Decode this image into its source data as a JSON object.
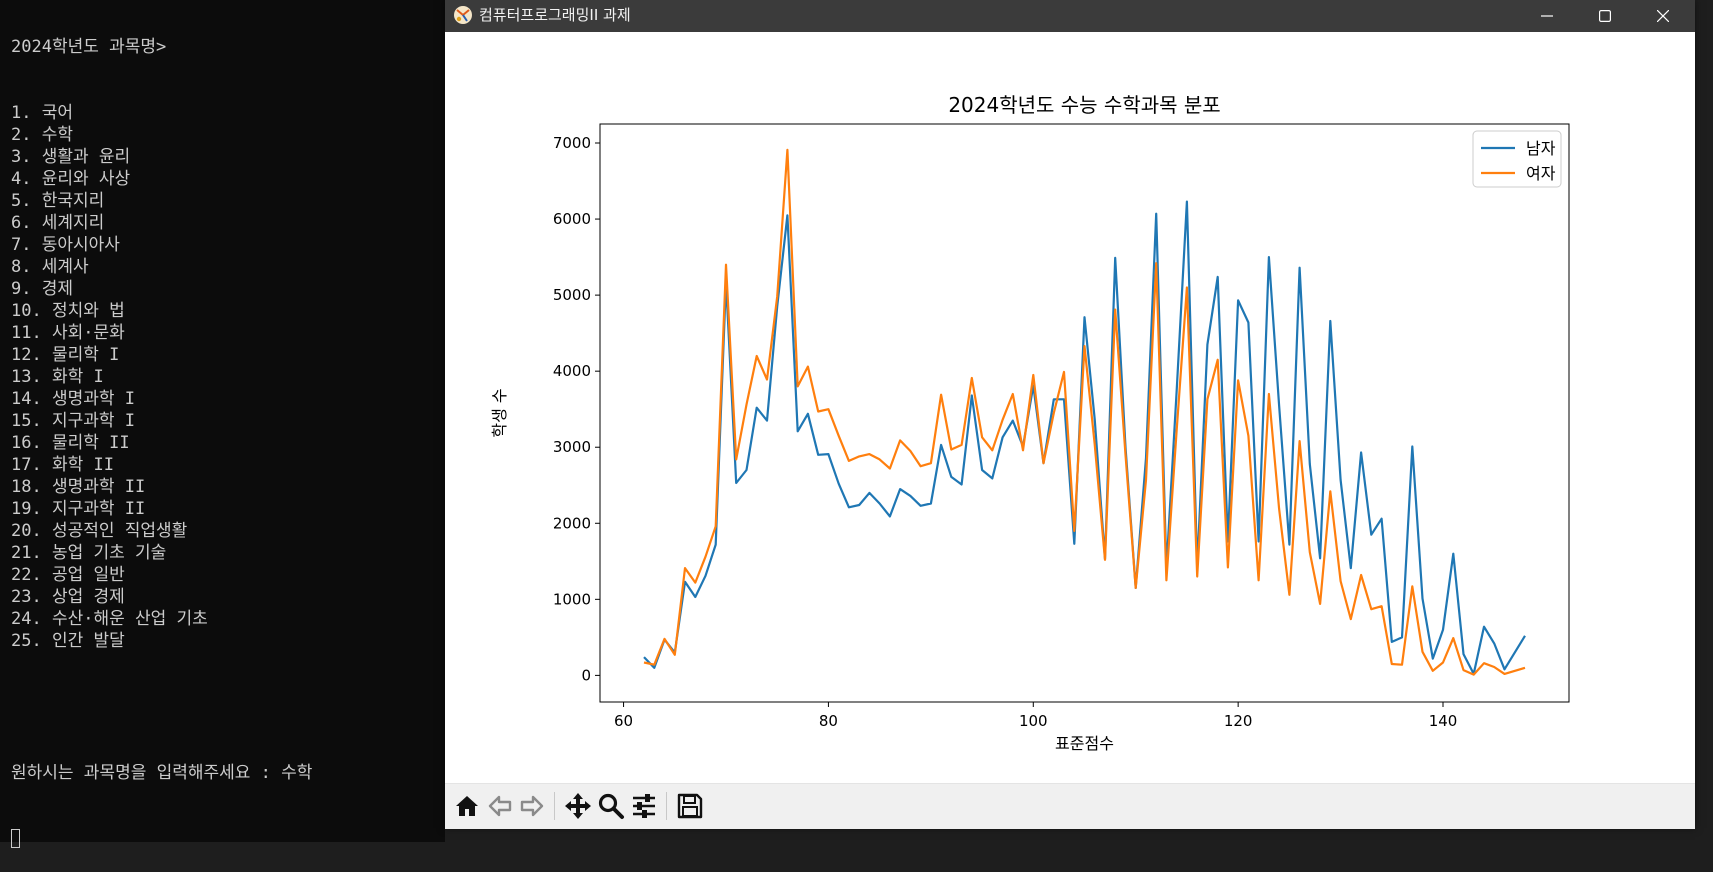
{
  "console": {
    "header": "2024학년도 과목명>",
    "items": [
      "1. 국어",
      "2. 수학",
      "3. 생활과 윤리",
      "4. 윤리와 사상",
      "5. 한국지리",
      "6. 세계지리",
      "7. 동아시아사",
      "8. 세계사",
      "9. 경제",
      "10. 정치와 법",
      "11. 사회·문화",
      "12. 물리학 I",
      "13. 화학 I",
      "14. 생명과학 I",
      "15. 지구과학 I",
      "16. 물리학 II",
      "17. 화학 II",
      "18. 생명과학 II",
      "19. 지구과학 II",
      "20. 성공적인 직업생활",
      "21. 농업 기초 기술",
      "22. 공업 일반",
      "23. 상업 경제",
      "24. 수산·해운 산업 기초",
      "25. 인간 발달"
    ],
    "prompt": "원하시는 과목명을 입력해주세요 : 수학"
  },
  "window": {
    "title": "컴퓨터프로그래밍II 과제",
    "titlebar_color": "#3b3b3b",
    "controls": [
      "minimize-icon",
      "maximize-icon",
      "close-icon"
    ]
  },
  "toolbar": {
    "buttons": [
      "home-icon",
      "back-arrow-icon",
      "forward-arrow-icon",
      "pan-icon",
      "zoom-icon",
      "configure-subplots-icon",
      "save-icon"
    ]
  },
  "chart_data": {
    "type": "line",
    "title": "2024학년도 수능 수학과목 분포",
    "xlabel": "표준점수",
    "ylabel": "학생 수",
    "xlim": [
      57.7,
      152.3
    ],
    "ylim": [
      -350,
      7250
    ],
    "xticks": [
      60,
      80,
      100,
      120,
      140
    ],
    "yticks": [
      0,
      1000,
      2000,
      3000,
      4000,
      5000,
      6000,
      7000
    ],
    "legend_position": "top-right",
    "grid": false,
    "series": [
      {
        "name": "남자",
        "color": "#1f77b4",
        "points": [
          [
            62,
            240
          ],
          [
            63,
            100
          ],
          [
            64,
            470
          ],
          [
            65,
            300
          ],
          [
            66,
            1230
          ],
          [
            67,
            1030
          ],
          [
            68,
            1310
          ],
          [
            69,
            1720
          ],
          [
            70,
            5180
          ],
          [
            71,
            2530
          ],
          [
            72,
            2700
          ],
          [
            73,
            3520
          ],
          [
            74,
            3350
          ],
          [
            75,
            4850
          ],
          [
            76,
            6050
          ],
          [
            77,
            3210
          ],
          [
            78,
            3440
          ],
          [
            79,
            2900
          ],
          [
            80,
            2910
          ],
          [
            81,
            2520
          ],
          [
            82,
            2210
          ],
          [
            83,
            2240
          ],
          [
            84,
            2400
          ],
          [
            85,
            2260
          ],
          [
            86,
            2090
          ],
          [
            87,
            2450
          ],
          [
            88,
            2360
          ],
          [
            89,
            2230
          ],
          [
            90,
            2260
          ],
          [
            91,
            3030
          ],
          [
            92,
            2610
          ],
          [
            93,
            2510
          ],
          [
            94,
            3680
          ],
          [
            95,
            2700
          ],
          [
            96,
            2590
          ],
          [
            97,
            3130
          ],
          [
            98,
            3350
          ],
          [
            99,
            3010
          ],
          [
            100,
            3810
          ],
          [
            101,
            2790
          ],
          [
            102,
            3630
          ],
          [
            103,
            3630
          ],
          [
            104,
            1730
          ],
          [
            105,
            4710
          ],
          [
            106,
            3370
          ],
          [
            107,
            1530
          ],
          [
            108,
            5490
          ],
          [
            109,
            3000
          ],
          [
            110,
            1150
          ],
          [
            111,
            2860
          ],
          [
            112,
            6070
          ],
          [
            113,
            1400
          ],
          [
            114,
            3750
          ],
          [
            115,
            6230
          ],
          [
            116,
            1410
          ],
          [
            117,
            4350
          ],
          [
            118,
            5240
          ],
          [
            119,
            1760
          ],
          [
            120,
            4930
          ],
          [
            121,
            4640
          ],
          [
            122,
            1760
          ],
          [
            123,
            5500
          ],
          [
            124,
            3550
          ],
          [
            125,
            1720
          ],
          [
            126,
            5360
          ],
          [
            127,
            2780
          ],
          [
            128,
            1540
          ],
          [
            129,
            4660
          ],
          [
            130,
            2570
          ],
          [
            131,
            1410
          ],
          [
            132,
            2930
          ],
          [
            133,
            1850
          ],
          [
            134,
            2060
          ],
          [
            135,
            440
          ],
          [
            136,
            500
          ],
          [
            137,
            3010
          ],
          [
            138,
            1010
          ],
          [
            139,
            220
          ],
          [
            140,
            600
          ],
          [
            141,
            1600
          ],
          [
            142,
            280
          ],
          [
            143,
            20
          ],
          [
            144,
            640
          ],
          [
            145,
            420
          ],
          [
            146,
            80
          ],
          [
            148,
            520
          ]
        ]
      },
      {
        "name": "여자",
        "color": "#ff7f0e",
        "points": [
          [
            62,
            170
          ],
          [
            63,
            140
          ],
          [
            64,
            480
          ],
          [
            65,
            270
          ],
          [
            66,
            1410
          ],
          [
            67,
            1220
          ],
          [
            68,
            1560
          ],
          [
            69,
            1960
          ],
          [
            70,
            5400
          ],
          [
            71,
            2840
          ],
          [
            72,
            3560
          ],
          [
            73,
            4200
          ],
          [
            74,
            3890
          ],
          [
            75,
            4980
          ],
          [
            76,
            6910
          ],
          [
            77,
            3800
          ],
          [
            78,
            4060
          ],
          [
            79,
            3470
          ],
          [
            80,
            3500
          ],
          [
            81,
            3150
          ],
          [
            82,
            2820
          ],
          [
            83,
            2880
          ],
          [
            84,
            2910
          ],
          [
            85,
            2840
          ],
          [
            86,
            2720
          ],
          [
            87,
            3090
          ],
          [
            88,
            2950
          ],
          [
            89,
            2750
          ],
          [
            90,
            2790
          ],
          [
            91,
            3690
          ],
          [
            92,
            2970
          ],
          [
            93,
            3030
          ],
          [
            94,
            3910
          ],
          [
            95,
            3130
          ],
          [
            96,
            2960
          ],
          [
            97,
            3360
          ],
          [
            98,
            3700
          ],
          [
            99,
            2960
          ],
          [
            100,
            3950
          ],
          [
            101,
            2790
          ],
          [
            102,
            3450
          ],
          [
            103,
            3990
          ],
          [
            104,
            1900
          ],
          [
            105,
            4330
          ],
          [
            106,
            3040
          ],
          [
            107,
            1520
          ],
          [
            108,
            4810
          ],
          [
            109,
            2900
          ],
          [
            110,
            1150
          ],
          [
            111,
            2570
          ],
          [
            112,
            5420
          ],
          [
            113,
            1250
          ],
          [
            114,
            3230
          ],
          [
            115,
            5100
          ],
          [
            116,
            1300
          ],
          [
            117,
            3630
          ],
          [
            118,
            4150
          ],
          [
            119,
            1420
          ],
          [
            120,
            3880
          ],
          [
            121,
            3150
          ],
          [
            122,
            1250
          ],
          [
            123,
            3700
          ],
          [
            124,
            2190
          ],
          [
            125,
            1060
          ],
          [
            126,
            3080
          ],
          [
            127,
            1620
          ],
          [
            128,
            940
          ],
          [
            129,
            2420
          ],
          [
            130,
            1240
          ],
          [
            131,
            740
          ],
          [
            132,
            1320
          ],
          [
            133,
            870
          ],
          [
            134,
            910
          ],
          [
            135,
            150
          ],
          [
            136,
            140
          ],
          [
            137,
            1170
          ],
          [
            138,
            310
          ],
          [
            139,
            60
          ],
          [
            140,
            170
          ],
          [
            141,
            490
          ],
          [
            142,
            70
          ],
          [
            143,
            10
          ],
          [
            144,
            160
          ],
          [
            145,
            110
          ],
          [
            146,
            20
          ],
          [
            148,
            100
          ]
        ]
      }
    ]
  }
}
